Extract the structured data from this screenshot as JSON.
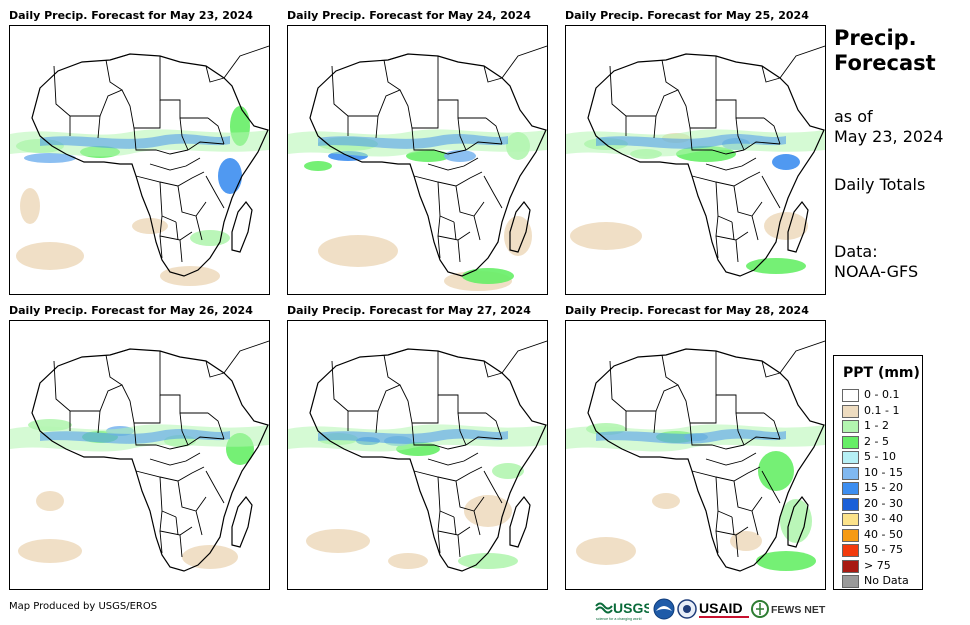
{
  "panels": [
    {
      "title": "Daily Precip. Forecast for May 23, 2024"
    },
    {
      "title": "Daily Precip. Forecast for May 24, 2024"
    },
    {
      "title": "Daily Precip. Forecast for May 25, 2024"
    },
    {
      "title": "Daily Precip. Forecast for May 26, 2024"
    },
    {
      "title": "Daily Precip. Forecast for May 27, 2024"
    },
    {
      "title": "Daily Precip. Forecast for May 28, 2024"
    }
  ],
  "side": {
    "title_line1": "Precip.",
    "title_line2": "Forecast",
    "asof_line1": "as of",
    "asof_line2": "May 23, 2024",
    "totals": "Daily Totals",
    "data_line1": "Data:",
    "data_line2": "NOAA-GFS"
  },
  "legend": {
    "title": "PPT (mm)",
    "items": [
      {
        "label": "0 - 0.1",
        "color": "#ffffff"
      },
      {
        "label": "0.1 - 1",
        "color": "#eedcc0"
      },
      {
        "label": "1 - 2",
        "color": "#b3f5b0"
      },
      {
        "label": "2 - 5",
        "color": "#66ee66"
      },
      {
        "label": "5 - 10",
        "color": "#b6f0f5"
      },
      {
        "label": "10 - 15",
        "color": "#80b8f0"
      },
      {
        "label": "15 - 20",
        "color": "#3d8ef0"
      },
      {
        "label": "20 - 30",
        "color": "#1a5fd8"
      },
      {
        "label": "30 - 40",
        "color": "#fbe28a"
      },
      {
        "label": "40 - 50",
        "color": "#f59a14"
      },
      {
        "label": "50 - 75",
        "color": "#f23a0c"
      },
      {
        "label": "> 75",
        "color": "#a81a12"
      },
      {
        "label": "No Data",
        "color": "#9a9a9a"
      }
    ]
  },
  "footer": {
    "credit": "Map Produced by USGS/EROS",
    "logos": [
      "USGS",
      "NOAA",
      "USAID",
      "FEWS NET"
    ],
    "usgs_tagline": "science for a changing world"
  }
}
